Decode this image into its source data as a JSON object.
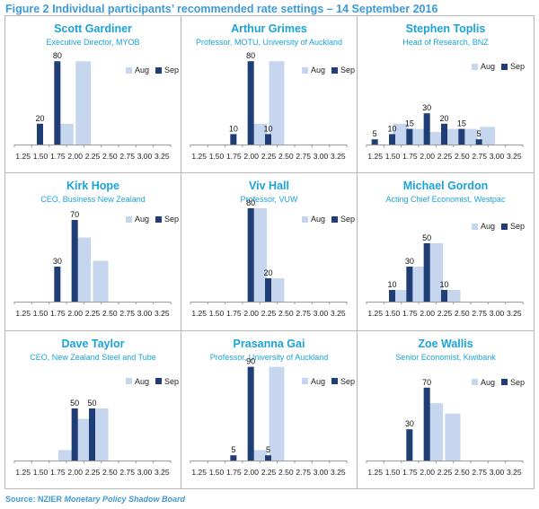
{
  "title": "Figure 2 Individual participants’ recommended rate settings – 14 September 2016",
  "source_label": "Source: NZIER",
  "source_name": "Monetary Policy Shadow Board",
  "legend": {
    "aug": "Aug",
    "sep": "Sep"
  },
  "colors": {
    "aug": "#c5d6ee",
    "sep": "#1f3e76"
  },
  "chart_data": [
    {
      "type": "bar",
      "name": "Scott Gardiner",
      "role": "Executive Director, MYOB",
      "categories": [
        "1.25",
        "1.50",
        "1.75",
        "2.00",
        "2.25",
        "2.50",
        "2.75",
        "3.00",
        "3.25"
      ],
      "ylim": [
        0,
        100
      ],
      "series": [
        {
          "name": "Aug",
          "values": [
            0,
            0,
            20,
            80,
            0,
            0,
            0,
            0,
            0
          ]
        },
        {
          "name": "Sep",
          "values": [
            0,
            20,
            80,
            0,
            0,
            0,
            0,
            0,
            0
          ]
        }
      ]
    },
    {
      "type": "bar",
      "name": "Arthur Grimes",
      "role": "Professor, MOTU, University of Auckland",
      "categories": [
        "1.25",
        "1.50",
        "1.75",
        "2.00",
        "2.25",
        "2.50",
        "2.75",
        "3.00",
        "3.25"
      ],
      "ylim": [
        0,
        100
      ],
      "series": [
        {
          "name": "Aug",
          "values": [
            0,
            0,
            0,
            20,
            80,
            0,
            0,
            0,
            0
          ]
        },
        {
          "name": "Sep",
          "values": [
            0,
            0,
            10,
            80,
            10,
            0,
            0,
            0,
            0
          ]
        }
      ]
    },
    {
      "type": "bar",
      "name": "Stephen Toplis",
      "role": "Head of Research, BNZ",
      "categories": [
        "1.25",
        "1.50",
        "1.75",
        "2.00",
        "2.25",
        "2.50",
        "2.75",
        "3.00",
        "3.25"
      ],
      "ylim": [
        0,
        100
      ],
      "series": [
        {
          "name": "Aug",
          "values": [
            0,
            20,
            15,
            12,
            15,
            15,
            17,
            0,
            0
          ]
        },
        {
          "name": "Sep",
          "values": [
            5,
            10,
            15,
            30,
            20,
            15,
            5,
            0,
            0
          ]
        }
      ]
    },
    {
      "type": "bar",
      "name": "Kirk Hope",
      "role": "CEO, Business New Zealand",
      "categories": [
        "1.25",
        "1.50",
        "1.75",
        "2.00",
        "2.25",
        "2.50",
        "2.75",
        "3.00",
        "3.25"
      ],
      "ylim": [
        0,
        100
      ],
      "series": [
        {
          "name": "Aug",
          "values": [
            0,
            0,
            0,
            55,
            35,
            0,
            0,
            0,
            0
          ]
        },
        {
          "name": "Sep",
          "values": [
            0,
            0,
            30,
            70,
            0,
            0,
            0,
            0,
            0
          ]
        }
      ]
    },
    {
      "type": "bar",
      "name": "Viv Hall",
      "role": "Professor, VUW",
      "categories": [
        "1.25",
        "1.50",
        "1.75",
        "2.00",
        "2.25",
        "2.50",
        "2.75",
        "3.00",
        "3.25"
      ],
      "ylim": [
        0,
        100
      ],
      "series": [
        {
          "name": "Aug",
          "values": [
            0,
            0,
            0,
            80,
            20,
            0,
            0,
            0,
            0
          ]
        },
        {
          "name": "Sep",
          "values": [
            0,
            0,
            0,
            80,
            20,
            0,
            0,
            0,
            0
          ]
        }
      ]
    },
    {
      "type": "bar",
      "name": "Michael Gordon",
      "role": "Acting Chief Economist, Westpac",
      "categories": [
        "1.25",
        "1.50",
        "1.75",
        "2.00",
        "2.25",
        "2.50",
        "2.75",
        "3.00",
        "3.25"
      ],
      "ylim": [
        0,
        100
      ],
      "series": [
        {
          "name": "Aug",
          "values": [
            0,
            10,
            30,
            50,
            10,
            0,
            0,
            0,
            0
          ]
        },
        {
          "name": "Sep",
          "values": [
            0,
            10,
            30,
            50,
            10,
            0,
            0,
            0,
            0
          ]
        }
      ]
    },
    {
      "type": "bar",
      "name": "Dave Taylor",
      "role": "CEO, New Zealand Steel and Tube",
      "categories": [
        "1.25",
        "1.50",
        "1.75",
        "2.00",
        "2.25",
        "2.50",
        "2.75",
        "3.00",
        "3.25"
      ],
      "ylim": [
        0,
        100
      ],
      "series": [
        {
          "name": "Aug",
          "values": [
            0,
            0,
            10,
            40,
            50,
            0,
            0,
            0,
            0
          ]
        },
        {
          "name": "Sep",
          "values": [
            0,
            0,
            0,
            50,
            50,
            0,
            0,
            0,
            0
          ]
        }
      ]
    },
    {
      "type": "bar",
      "name": "Prasanna Gai",
      "role": "Professor, University of Auckland",
      "categories": [
        "1.25",
        "1.50",
        "1.75",
        "2.00",
        "2.25",
        "2.50",
        "2.75",
        "3.00",
        "3.25"
      ],
      "ylim": [
        0,
        100
      ],
      "series": [
        {
          "name": "Aug",
          "values": [
            0,
            0,
            0,
            10,
            90,
            0,
            0,
            0,
            0
          ]
        },
        {
          "name": "Sep",
          "values": [
            0,
            0,
            5,
            90,
            5,
            0,
            0,
            0,
            0
          ]
        }
      ]
    },
    {
      "type": "bar",
      "name": "Zoe Wallis",
      "role": "Senior Economist, Kiwibank",
      "categories": [
        "1.25",
        "1.50",
        "1.75",
        "2.00",
        "2.25",
        "2.50",
        "2.75",
        "3.00",
        "3.25"
      ],
      "ylim": [
        0,
        100
      ],
      "series": [
        {
          "name": "Aug",
          "values": [
            0,
            0,
            0,
            55,
            45,
            0,
            0,
            0,
            0
          ]
        },
        {
          "name": "Sep",
          "values": [
            0,
            0,
            30,
            70,
            0,
            0,
            0,
            0,
            0
          ]
        }
      ]
    }
  ]
}
